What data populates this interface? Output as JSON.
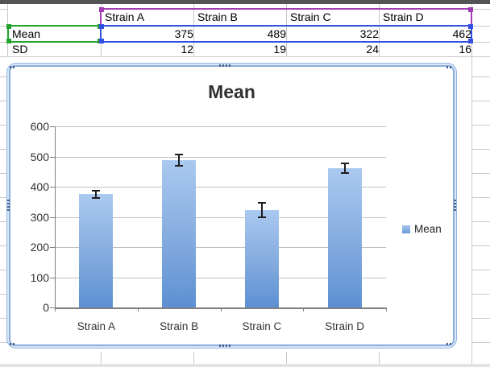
{
  "sheet": {
    "table": {
      "header": [
        "Strain A",
        "Strain B",
        "Strain C",
        "Strain D"
      ],
      "row_labels": [
        "Mean",
        "SD"
      ],
      "mean_values": [
        "375",
        "489",
        "322",
        "462"
      ],
      "sd_values": [
        "12",
        "19",
        "24",
        "16"
      ]
    },
    "selection_colors": {
      "header_range": "#a23cb4",
      "label_cell": "#23a32d",
      "value_range": "#3350e2"
    }
  },
  "chart_data": {
    "type": "bar",
    "title": "Mean",
    "categories": [
      "Strain A",
      "Strain B",
      "Strain C",
      "Strain D"
    ],
    "series": [
      {
        "name": "Mean",
        "values": [
          375,
          489,
          322,
          462
        ]
      }
    ],
    "error_bars": {
      "label": "SD",
      "values": [
        12,
        19,
        24,
        16
      ]
    },
    "ylim": [
      0,
      600
    ],
    "ytick_step": 100,
    "grid": true,
    "legend": {
      "position": "right",
      "entries": [
        "Mean"
      ]
    },
    "bar_color_top": "#aac9f0",
    "bar_color_bottom": "#5c90d3"
  }
}
